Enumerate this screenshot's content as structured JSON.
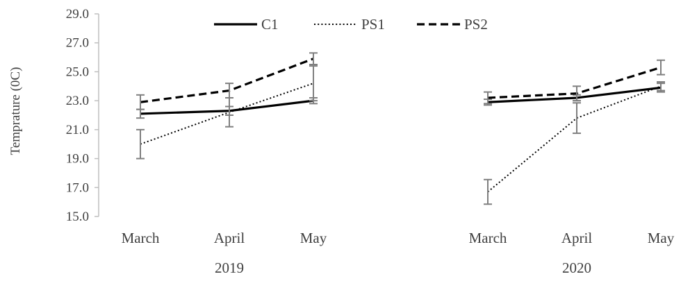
{
  "chart_data": {
    "type": "line",
    "ylabel": "Temprature (0C)",
    "ylim": [
      15.0,
      29.0
    ],
    "yticks": [
      "15.0",
      "17.0",
      "19.0",
      "21.0",
      "23.0",
      "25.0",
      "27.0",
      "29.0"
    ],
    "legend_position": "top",
    "grid": false,
    "groups": [
      {
        "label": "2019",
        "categories": [
          "March",
          "April",
          "May"
        ]
      },
      {
        "label": "2020",
        "categories": [
          "March",
          "April",
          "May"
        ]
      }
    ],
    "series": [
      {
        "name": "C1",
        "style": "solid",
        "color": "#000000",
        "groups": [
          {
            "values": [
              22.1,
              22.3,
              23.0
            ],
            "errors": [
              0.3,
              0.3,
              0.2
            ]
          },
          {
            "values": [
              22.9,
              23.2,
              23.9
            ],
            "errors": [
              0.2,
              0.2,
              0.3
            ]
          }
        ]
      },
      {
        "name": "PS1",
        "style": "dotted",
        "color": "#000000",
        "groups": [
          {
            "values": [
              20.0,
              22.2,
              24.2
            ],
            "errors": [
              1.0,
              1.0,
              1.2
            ]
          },
          {
            "values": [
              16.7,
              21.8,
              24.0
            ],
            "errors": [
              0.85,
              1.05,
              0.3
            ]
          }
        ]
      },
      {
        "name": "PS2",
        "style": "dashed",
        "color": "#000000",
        "groups": [
          {
            "values": [
              22.9,
              23.7,
              25.9
            ],
            "errors": [
              0.5,
              0.5,
              0.4
            ]
          },
          {
            "values": [
              23.2,
              23.5,
              25.3
            ],
            "errors": [
              0.4,
              0.5,
              0.5
            ]
          }
        ]
      }
    ]
  }
}
